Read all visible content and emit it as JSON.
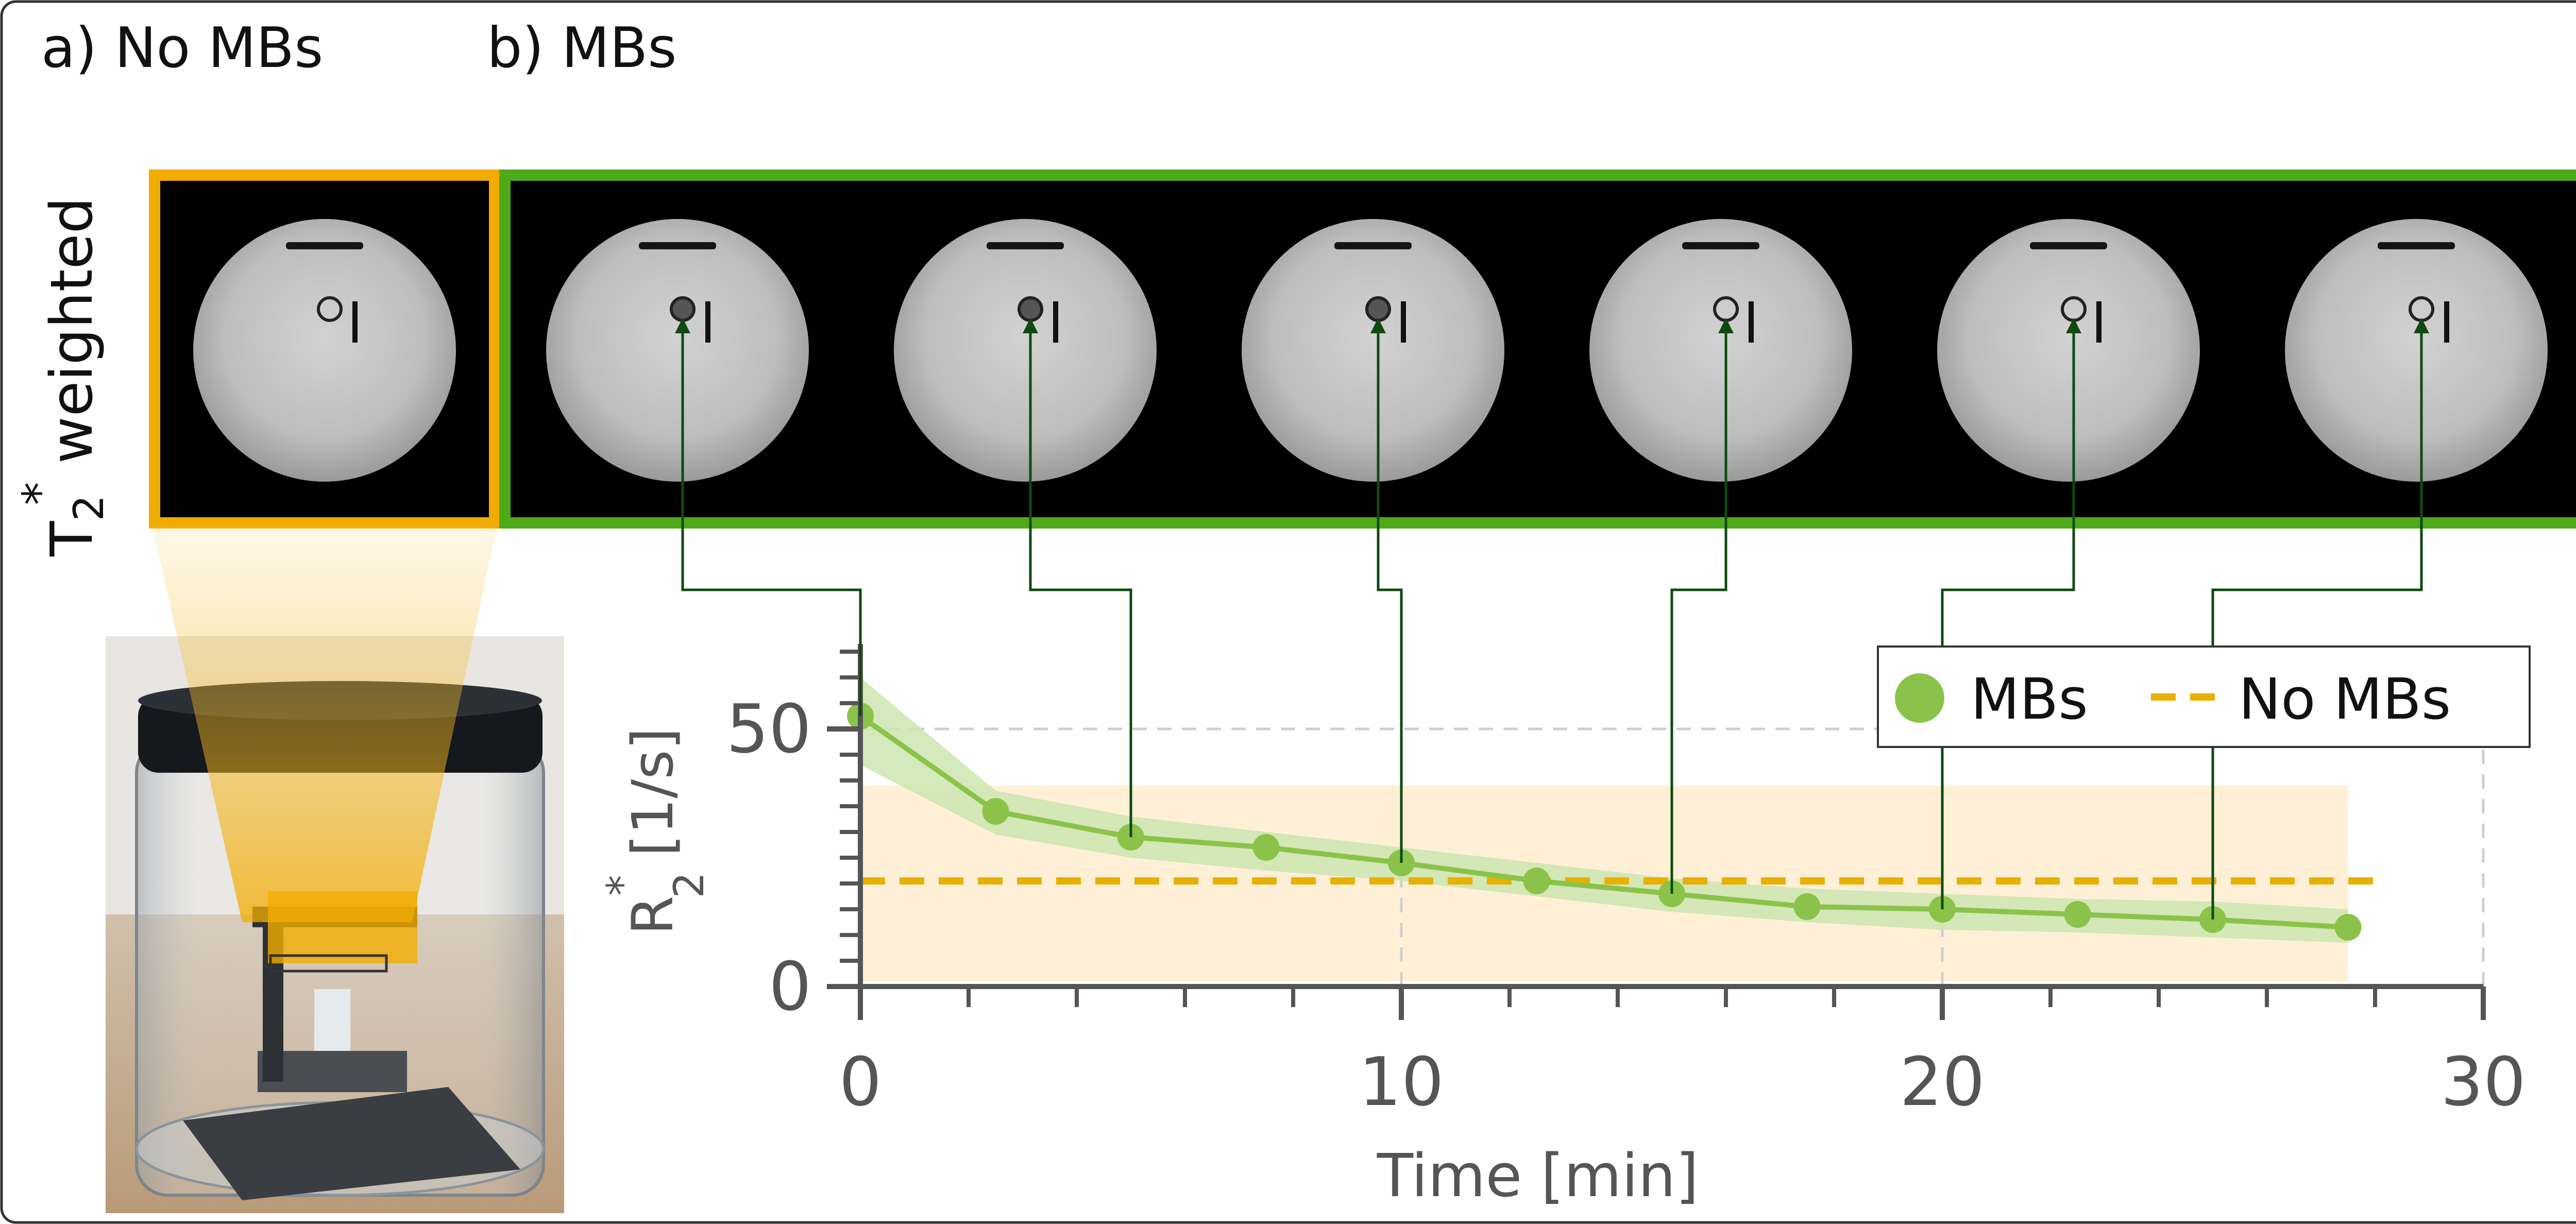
{
  "panels": {
    "a_label": "a) No MBs",
    "b_label": "b) MBs",
    "row_label_base": "T",
    "row_label_sub": "2",
    "row_label_sup": "*",
    "row_label_rest": " weighted",
    "no_mbs_frame_color": "#f2ac00",
    "mbs_frame_color": "#4faa19"
  },
  "colors": {
    "mbs": "#8bc34a",
    "mbs_band": "#cde5b0",
    "no_mbs": "#e8b000",
    "no_mbs_band": "#fdf0d6",
    "connector": "#0f4a10",
    "axis": "#555555"
  },
  "chart_data": {
    "type": "line",
    "xlabel": "Time [min]",
    "ylabel": "R",
    "ylabel_sup": "*",
    "ylabel_sub": "2",
    "ylabel_unit": "[1/s]",
    "xlim": [
      0,
      30
    ],
    "ylim": [
      0,
      65
    ],
    "xticks": [
      0,
      10,
      20,
      30
    ],
    "yticks": [
      0,
      50
    ],
    "x_minor_step": 2,
    "y_minor_step": 5,
    "grid": true,
    "legend_position": "top-right",
    "series": [
      {
        "name": "MBs",
        "style": "line-markers",
        "x": [
          0,
          2.5,
          5,
          7.5,
          10,
          12.5,
          15,
          17.5,
          20,
          22.5,
          25,
          27.5
        ],
        "values": [
          52.5,
          34,
          29,
          27,
          24,
          20.5,
          18,
          15.5,
          15,
          14,
          13,
          11.5
        ],
        "band_upper": [
          60,
          38,
          33,
          30,
          27,
          24,
          21,
          19,
          18,
          17,
          16.5,
          15
        ],
        "band_lower": [
          43,
          29.5,
          25,
          22.5,
          20.5,
          17.5,
          14.5,
          12.5,
          11,
          10.5,
          9.5,
          8.5
        ]
      },
      {
        "name": "No MBs",
        "style": "dashed",
        "value": 20.5,
        "band": [
          1,
          39
        ],
        "x_range": [
          0,
          27.5
        ]
      }
    ],
    "linked_times": [
      0,
      5,
      10,
      15,
      20,
      25
    ]
  }
}
